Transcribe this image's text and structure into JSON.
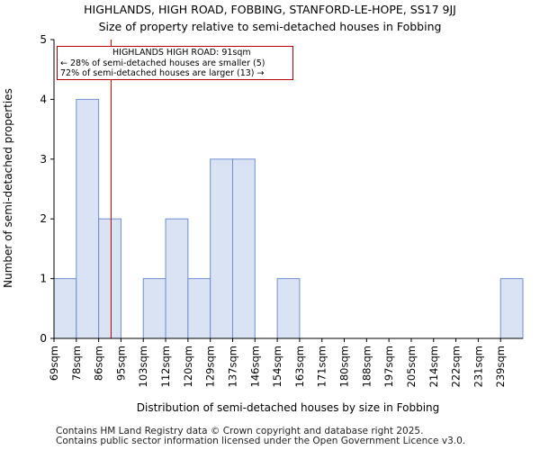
{
  "chart_data": {
    "type": "bar",
    "title": "HIGHLANDS, HIGH ROAD, FOBBING, STANFORD-LE-HOPE, SS17 9JJ",
    "subtitle": "Size of property relative to semi-detached houses in Fobbing",
    "xlabel": "Distribution of semi-detached houses by size in Fobbing",
    "ylabel": "Number of semi-detached properties",
    "categories": [
      "69sqm",
      "78sqm",
      "86sqm",
      "95sqm",
      "103sqm",
      "112sqm",
      "120sqm",
      "129sqm",
      "137sqm",
      "146sqm",
      "154sqm",
      "163sqm",
      "171sqm",
      "180sqm",
      "188sqm",
      "197sqm",
      "205sqm",
      "214sqm",
      "222sqm",
      "231sqm",
      "239sqm"
    ],
    "values": [
      1,
      4,
      2,
      0,
      1,
      2,
      1,
      3,
      3,
      0,
      1,
      0,
      0,
      0,
      0,
      0,
      0,
      0,
      0,
      0,
      1
    ],
    "ylim": [
      0,
      5
    ],
    "yticks": [
      0,
      1,
      2,
      3,
      4,
      5
    ],
    "grid": false,
    "marker_value": 91,
    "colors": {
      "bar_fill": "#dae3f3",
      "bar_edge": "#6f8fcf",
      "marker": "#b00000"
    },
    "annotation": {
      "line1": "HIGHLANDS HIGH ROAD: 91sqm",
      "line2": "← 28% of semi-detached houses are smaller (5)",
      "line3": "72% of semi-detached houses are larger (13) →"
    }
  },
  "footer": {
    "line1": "Contains HM Land Registry data © Crown copyright and database right 2025.",
    "line2": "Contains public sector information licensed under the Open Government Licence v3.0."
  }
}
